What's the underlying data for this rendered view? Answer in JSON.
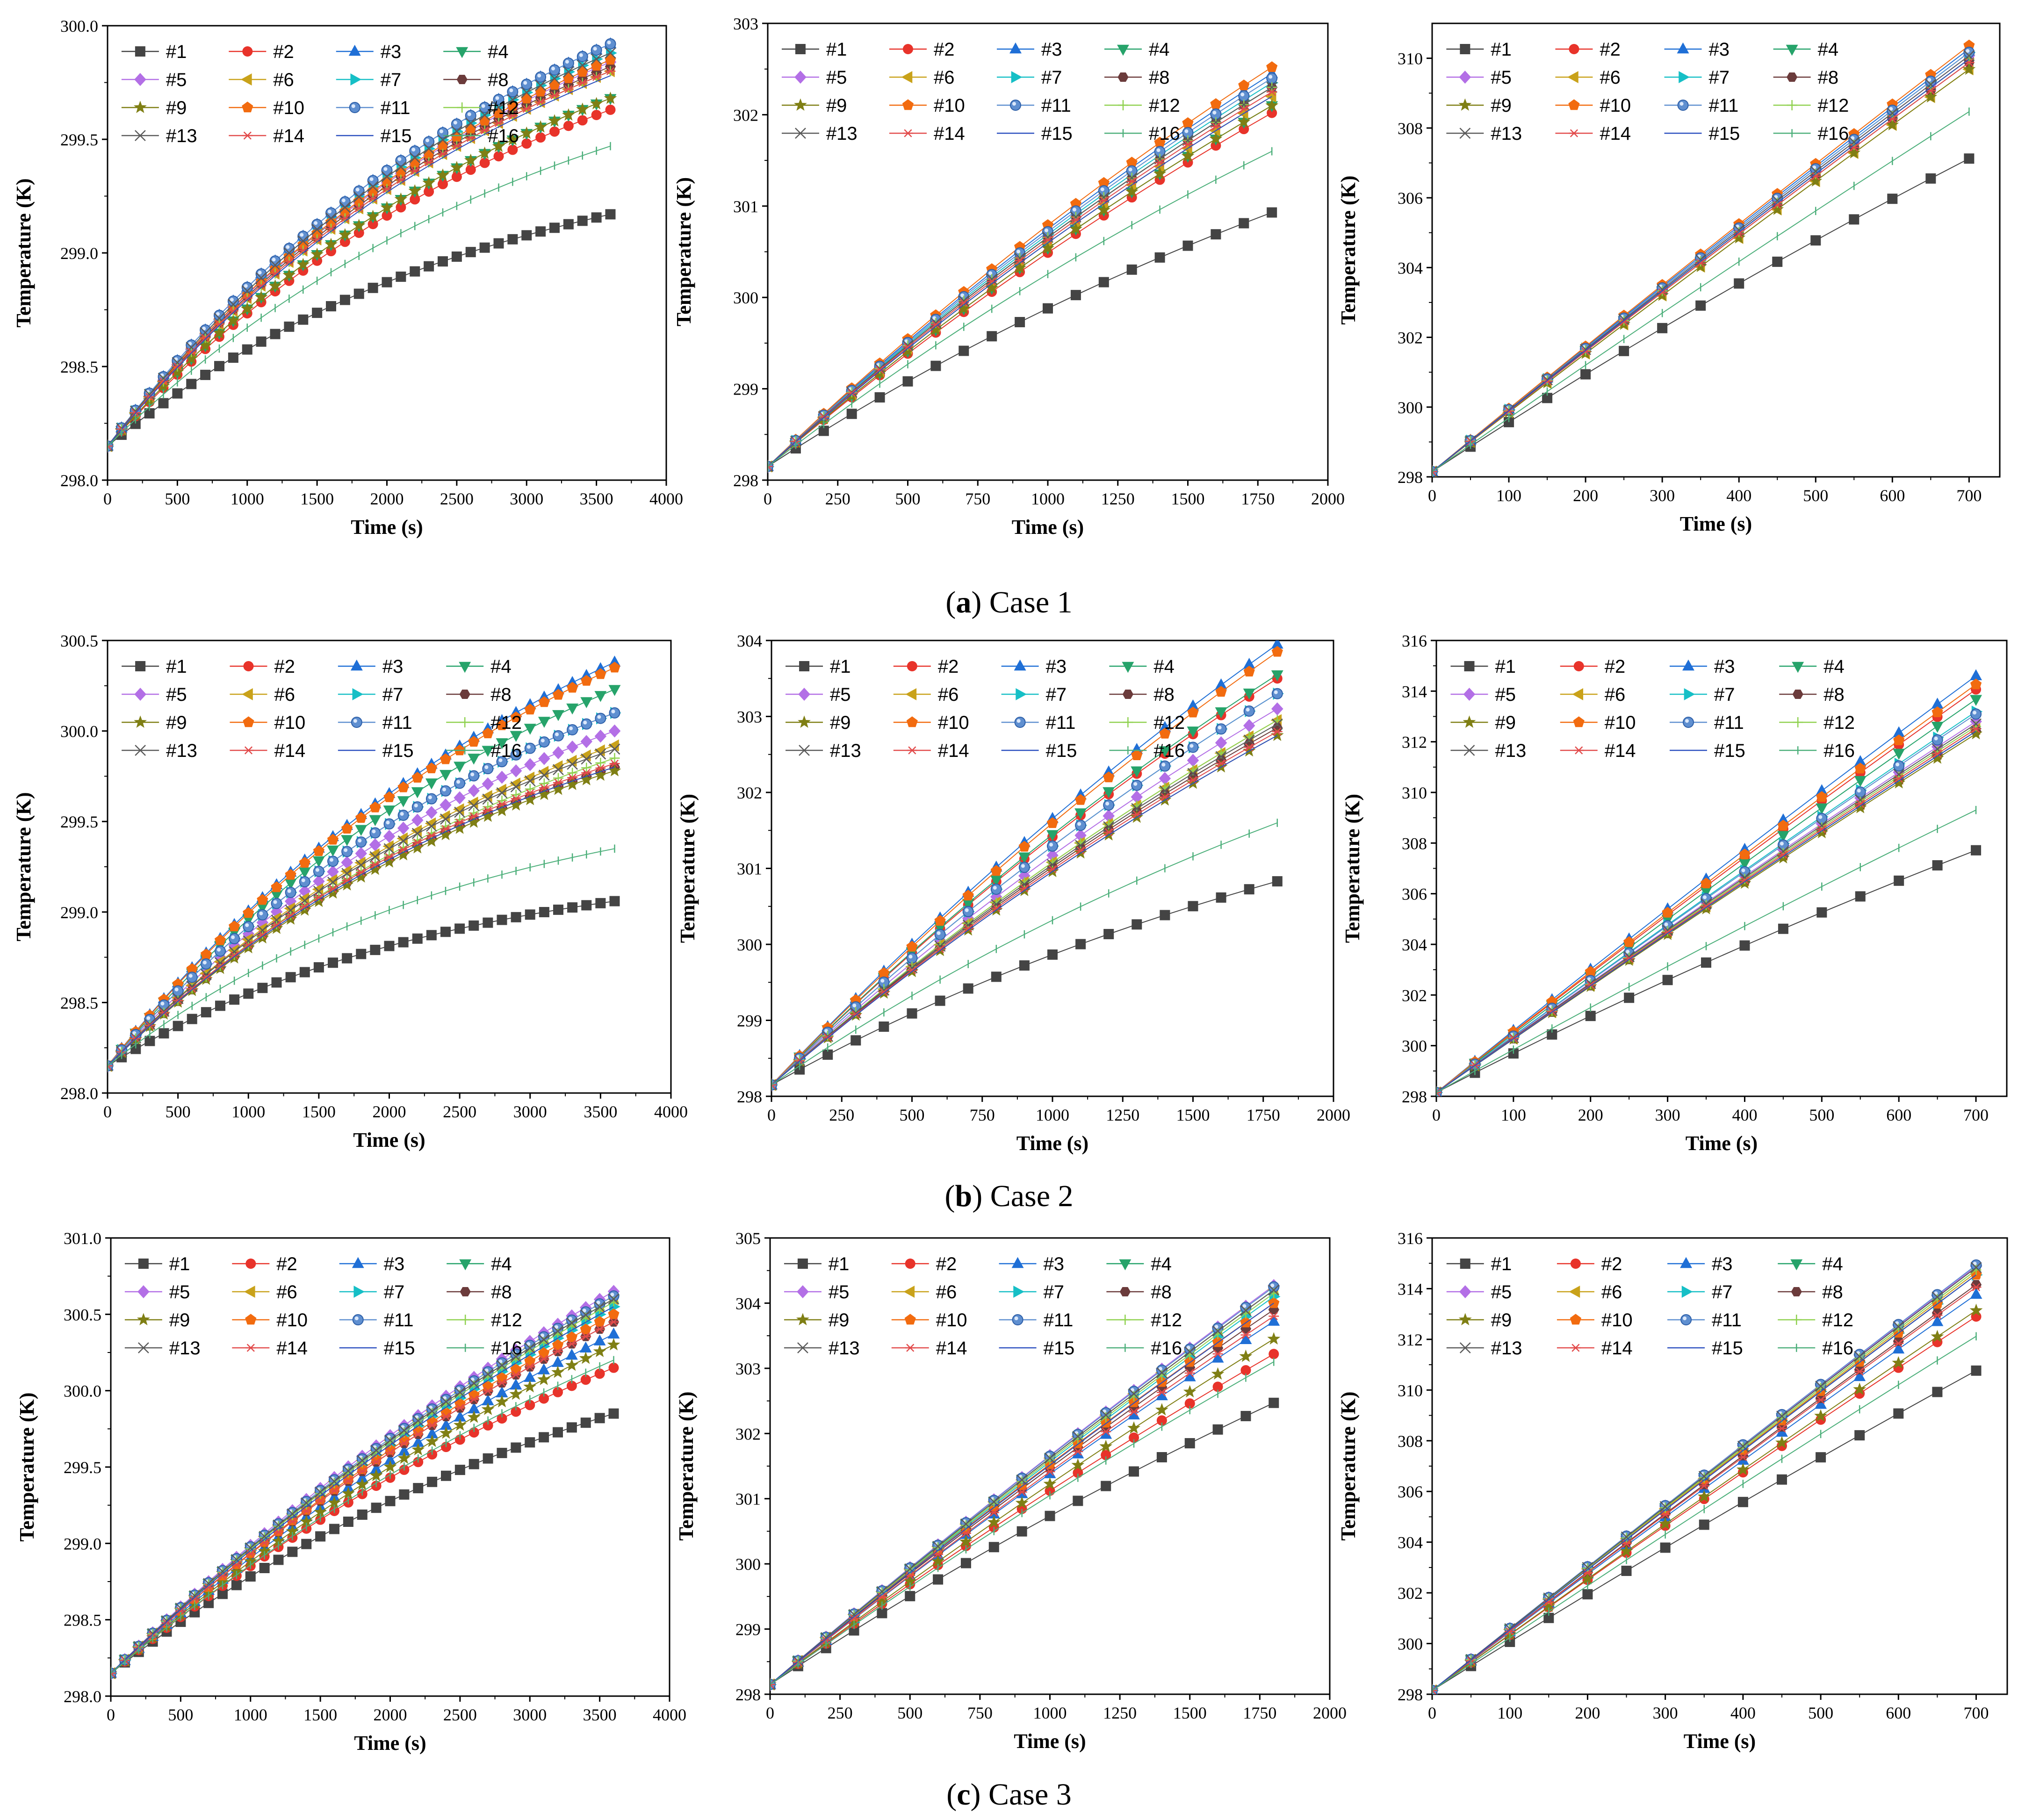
{
  "figure": {
    "captions": [
      {
        "letter": "a",
        "text": "Case 1"
      },
      {
        "letter": "b",
        "text": "Case 2"
      },
      {
        "letter": "c",
        "text": "Case 3"
      }
    ]
  },
  "series_styles": [
    {
      "name": "#1",
      "color": "#444444",
      "marker": "square"
    },
    {
      "name": "#2",
      "color": "#e8332a",
      "marker": "circle"
    },
    {
      "name": "#3",
      "color": "#1f6fd6",
      "marker": "triangle-up"
    },
    {
      "name": "#4",
      "color": "#26a36a",
      "marker": "triangle-down"
    },
    {
      "name": "#5",
      "color": "#b36fe6",
      "marker": "diamond"
    },
    {
      "name": "#6",
      "color": "#c9a21a",
      "marker": "triangle-left"
    },
    {
      "name": "#7",
      "color": "#16bfc6",
      "marker": "triangle-right"
    },
    {
      "name": "#8",
      "color": "#6b3b3b",
      "marker": "hexagon"
    },
    {
      "name": "#9",
      "color": "#7f7f14",
      "marker": "star"
    },
    {
      "name": "#10",
      "color": "#f26b0f",
      "marker": "pentagon"
    },
    {
      "name": "#11",
      "color": "#5f8fd0",
      "marker": "sphere"
    },
    {
      "name": "#12",
      "color": "#8fd14f",
      "marker": "plus"
    },
    {
      "name": "#13",
      "color": "#5a5a5a",
      "marker": "x"
    },
    {
      "name": "#14",
      "color": "#e24b4b",
      "marker": "asterisk"
    },
    {
      "name": "#15",
      "color": "#2b4fbf",
      "marker": "line"
    },
    {
      "name": "#16",
      "color": "#4caf7a",
      "marker": "vbar"
    }
  ],
  "chart_data": [
    {
      "type": "line",
      "panel": "a1",
      "xlabel": "Time (s)",
      "ylabel": "Temperature (K)",
      "xlim": [
        0,
        4000
      ],
      "ylim": [
        298.0,
        300.0
      ],
      "xticks": [
        0,
        500,
        1000,
        1500,
        2000,
        2500,
        3000,
        3500,
        4000
      ],
      "yticks": [
        298.0,
        298.5,
        299.0,
        299.5,
        300.0
      ],
      "ytick_labels": [
        "298.0",
        "298.5",
        "299.0",
        "299.5",
        "300.0"
      ],
      "x_end": 3600,
      "step": 100,
      "start": 298.15,
      "finals": [
        299.17,
        299.63,
        299.92,
        299.68,
        299.84,
        299.8,
        299.88,
        299.82,
        299.68,
        299.85,
        299.92,
        299.8,
        299.88,
        299.8,
        299.78,
        299.47
      ],
      "curv": [
        1.3,
        1.1,
        1.1,
        1.1,
        1.1,
        1.1,
        1.1,
        1.1,
        1.1,
        1.1,
        1.1,
        1.1,
        1.1,
        1.1,
        1.1,
        1.1
      ]
    },
    {
      "type": "line",
      "panel": "a2",
      "xlabel": "Time (s)",
      "ylabel": "Temperature (K)",
      "xlim": [
        0,
        2000
      ],
      "ylim": [
        298,
        303
      ],
      "xticks": [
        0,
        250,
        500,
        750,
        1000,
        1250,
        1500,
        1750,
        2000
      ],
      "yticks": [
        298,
        299,
        300,
        301,
        302,
        303
      ],
      "ytick_labels": [
        "298",
        "299",
        "300",
        "301",
        "302",
        "303"
      ],
      "x_end": 1800,
      "step": 100,
      "start": 298.15,
      "finals": [
        300.93,
        302.02,
        302.45,
        302.1,
        302.3,
        302.2,
        302.35,
        302.3,
        302.1,
        302.52,
        302.4,
        302.3,
        302.3,
        302.25,
        302.2,
        301.6
      ],
      "curv": [
        0.55,
        0.4,
        0.4,
        0.4,
        0.4,
        0.4,
        0.4,
        0.4,
        0.4,
        0.4,
        0.4,
        0.4,
        0.4,
        0.4,
        0.4,
        0.45
      ]
    },
    {
      "type": "line",
      "panel": "a3",
      "xlabel": "Time (s)",
      "ylabel": "Temperature (K)",
      "xlim": [
        0,
        740
      ],
      "ylim": [
        298,
        311
      ],
      "xticks": [
        0,
        100,
        200,
        300,
        400,
        500,
        600,
        700
      ],
      "yticks": [
        298,
        300,
        302,
        304,
        306,
        308,
        310
      ],
      "ytick_labels": [
        "298",
        "300",
        "302",
        "304",
        "306",
        "308",
        "310"
      ],
      "x_end": 720,
      "step": 50,
      "start": 298.15,
      "finals": [
        307.35,
        310.3,
        310.6,
        310.3,
        310.4,
        310.0,
        310.5,
        310.2,
        310.0,
        310.7,
        310.5,
        310.3,
        310.4,
        310.2,
        310.3,
        308.75
      ],
      "curv": [
        0.25,
        0.08,
        0.08,
        0.08,
        0.08,
        0.08,
        0.08,
        0.08,
        0.08,
        0.08,
        0.08,
        0.08,
        0.08,
        0.08,
        0.08,
        0.1
      ]
    },
    {
      "type": "line",
      "panel": "b1",
      "xlabel": "Time (s)",
      "ylabel": "Temperature (K)",
      "xlim": [
        0,
        4000
      ],
      "ylim": [
        298.0,
        300.5
      ],
      "xticks": [
        0,
        500,
        1000,
        1500,
        2000,
        2500,
        3000,
        3500,
        4000
      ],
      "yticks": [
        298.0,
        298.5,
        299.0,
        299.5,
        300.0,
        300.5
      ],
      "ytick_labels": [
        "298.0",
        "298.5",
        "299.0",
        "299.5",
        "300.0",
        "300.5"
      ],
      "x_end": 3600,
      "step": 100,
      "start": 298.15,
      "finals": [
        299.06,
        300.1,
        300.38,
        300.23,
        300.0,
        299.92,
        300.1,
        299.8,
        299.78,
        300.35,
        300.1,
        299.85,
        299.9,
        299.82,
        299.8,
        299.35
      ],
      "curv": [
        1.5,
        1.1,
        1.0,
        1.05,
        1.1,
        1.1,
        1.1,
        1.15,
        1.15,
        1.0,
        1.1,
        1.1,
        1.1,
        1.15,
        1.15,
        1.4
      ]
    },
    {
      "type": "line",
      "panel": "b2",
      "xlabel": "Time (s)",
      "ylabel": "Temperature (K)",
      "xlim": [
        0,
        2000
      ],
      "ylim": [
        298,
        304
      ],
      "xticks": [
        0,
        250,
        500,
        750,
        1000,
        1250,
        1500,
        1750,
        2000
      ],
      "yticks": [
        298,
        299,
        300,
        301,
        302,
        303,
        304
      ],
      "ytick_labels": [
        "298",
        "299",
        "300",
        "301",
        "302",
        "303",
        "304"
      ],
      "x_end": 1800,
      "step": 100,
      "start": 298.15,
      "finals": [
        300.83,
        303.5,
        303.95,
        303.55,
        303.1,
        302.95,
        303.3,
        302.85,
        302.75,
        303.85,
        303.3,
        302.95,
        302.9,
        302.8,
        302.75,
        301.6
      ],
      "curv": [
        0.7,
        0.45,
        0.4,
        0.45,
        0.45,
        0.45,
        0.45,
        0.45,
        0.45,
        0.4,
        0.45,
        0.45,
        0.45,
        0.45,
        0.45,
        0.6
      ]
    },
    {
      "type": "line",
      "panel": "b3",
      "xlabel": "Time (s)",
      "ylabel": "Temperature (K)",
      "xlim": [
        0,
        740
      ],
      "ylim": [
        298,
        316
      ],
      "xticks": [
        0,
        100,
        200,
        300,
        400,
        500,
        600,
        700
      ],
      "yticks": [
        298,
        300,
        302,
        304,
        306,
        308,
        310,
        312,
        314,
        316
      ],
      "ytick_labels": [
        "298",
        "300",
        "302",
        "304",
        "306",
        "308",
        "310",
        "312",
        "314",
        "316"
      ],
      "x_end": 720,
      "step": 50,
      "start": 298.15,
      "finals": [
        307.95,
        314.5,
        315.05,
        314.1,
        313.2,
        312.9,
        313.6,
        312.8,
        312.7,
        314.7,
        313.5,
        313.0,
        313.1,
        312.9,
        312.8,
        309.6
      ],
      "curv": [
        0.3,
        0.1,
        0.1,
        0.1,
        0.1,
        0.1,
        0.1,
        0.1,
        0.1,
        0.1,
        0.1,
        0.1,
        0.1,
        0.1,
        0.1,
        0.15
      ]
    },
    {
      "type": "line",
      "panel": "c1",
      "xlabel": "Time (s)",
      "ylabel": "Temperature (K)",
      "xlim": [
        0,
        4000
      ],
      "ylim": [
        298.0,
        301.0
      ],
      "xticks": [
        0,
        500,
        1000,
        1500,
        2000,
        2500,
        3000,
        3500,
        4000
      ],
      "yticks": [
        298.0,
        298.5,
        299.0,
        299.5,
        300.0,
        300.5,
        301.0
      ],
      "ytick_labels": [
        "298.0",
        "298.5",
        "299.0",
        "299.5",
        "300.0",
        "300.5",
        "301.0"
      ],
      "x_end": 3600,
      "step": 100,
      "start": 298.15,
      "finals": [
        299.85,
        300.15,
        300.37,
        300.6,
        300.65,
        300.6,
        300.55,
        300.45,
        300.3,
        300.5,
        300.62,
        300.58,
        300.6,
        300.45,
        300.55,
        300.2
      ],
      "curv": [
        0.9,
        0.7,
        0.6,
        0.55,
        0.55,
        0.55,
        0.55,
        0.6,
        0.6,
        0.55,
        0.55,
        0.55,
        0.55,
        0.6,
        0.55,
        0.65
      ]
    },
    {
      "type": "line",
      "panel": "c2",
      "xlabel": "Time (s)",
      "ylabel": "Temperature (K)",
      "xlim": [
        0,
        2000
      ],
      "ylim": [
        298,
        305
      ],
      "xticks": [
        0,
        250,
        500,
        750,
        1000,
        1250,
        1500,
        1750,
        2000
      ],
      "yticks": [
        298,
        299,
        300,
        301,
        302,
        303,
        304,
        305
      ],
      "ytick_labels": [
        "298",
        "299",
        "300",
        "301",
        "302",
        "303",
        "304",
        "305"
      ],
      "x_end": 1800,
      "step": 100,
      "start": 298.15,
      "finals": [
        302.47,
        303.22,
        303.72,
        304.2,
        304.27,
        304.2,
        304.1,
        303.9,
        303.45,
        304.0,
        304.25,
        304.15,
        304.2,
        303.8,
        304.0,
        303.1
      ],
      "curv": [
        0.35,
        0.25,
        0.2,
        0.15,
        0.15,
        0.15,
        0.15,
        0.18,
        0.2,
        0.18,
        0.15,
        0.15,
        0.15,
        0.18,
        0.16,
        0.25
      ]
    },
    {
      "type": "line",
      "panel": "c3",
      "xlabel": "Time (s)",
      "ylabel": "Temperature (K)",
      "xlim": [
        0,
        740
      ],
      "ylim": [
        298,
        316
      ],
      "xticks": [
        0,
        100,
        200,
        300,
        400,
        500,
        600,
        700
      ],
      "yticks": [
        298,
        300,
        302,
        304,
        306,
        308,
        310,
        312,
        314,
        316
      ],
      "ytick_labels": [
        "298",
        "300",
        "302",
        "304",
        "306",
        "308",
        "310",
        "312",
        "314",
        "316"
      ],
      "x_end": 720,
      "step": 50,
      "start": 298.15,
      "finals": [
        311.1,
        313.3,
        314.2,
        315.2,
        315.35,
        315.1,
        315.0,
        314.6,
        313.55,
        315.0,
        315.4,
        315.2,
        315.3,
        314.5,
        315.0,
        312.5
      ],
      "curv": [
        0.15,
        0.1,
        0.08,
        0.05,
        0.05,
        0.05,
        0.05,
        0.06,
        0.08,
        0.06,
        0.05,
        0.05,
        0.05,
        0.06,
        0.05,
        0.1
      ]
    }
  ]
}
